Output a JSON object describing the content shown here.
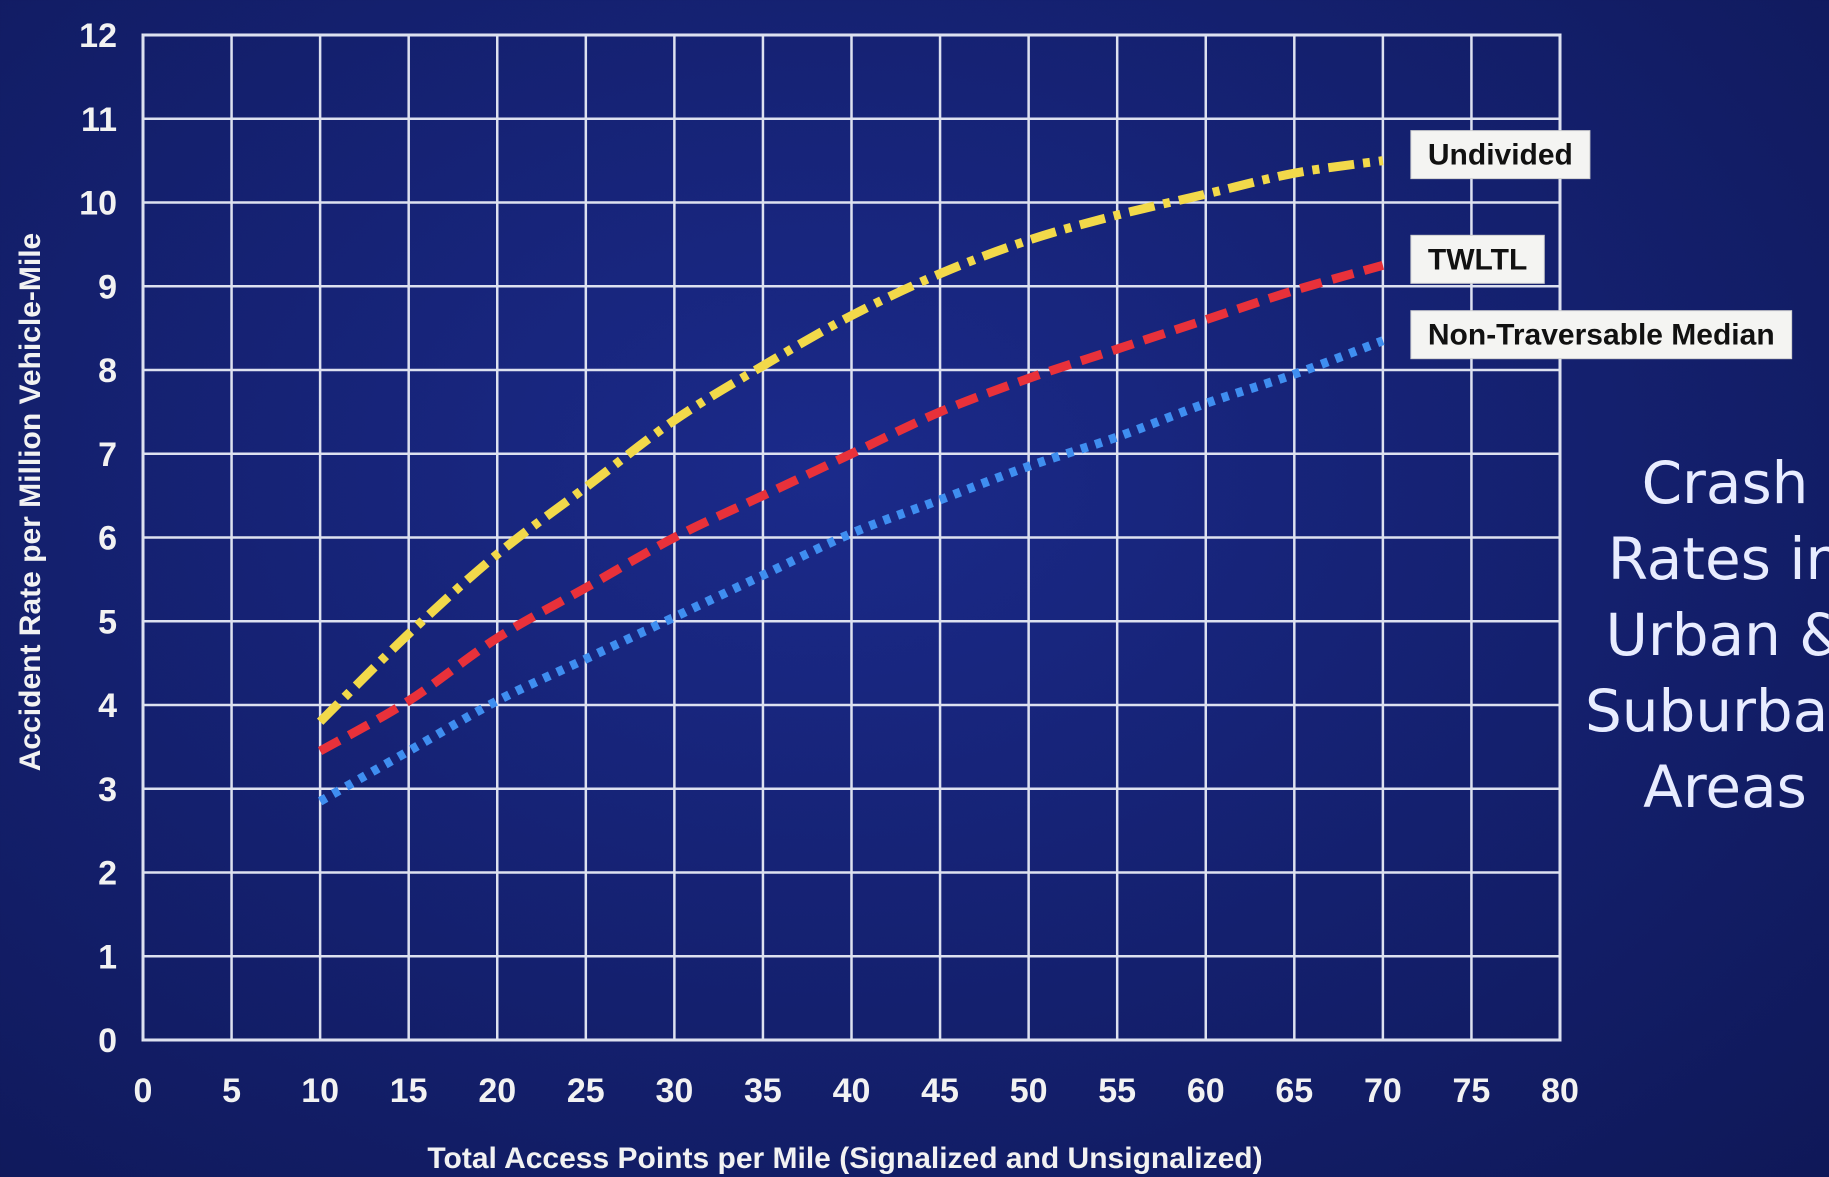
{
  "chart_data": {
    "type": "line",
    "title": "",
    "xlabel": "Total Access Points per Mile (Signalized and Unsignalized)",
    "ylabel": "Accident Rate per Million Vehicle-Mile",
    "xlim": [
      0,
      80
    ],
    "ylim": [
      0,
      12
    ],
    "x_ticks": [
      "0",
      "5",
      "10",
      "15",
      "20",
      "25",
      "30",
      "35",
      "40",
      "45",
      "50",
      "55",
      "60",
      "65",
      "70",
      "75",
      "80"
    ],
    "y_ticks": [
      "0",
      "1",
      "2",
      "3",
      "4",
      "5",
      "6",
      "7",
      "8",
      "9",
      "10",
      "11",
      "12"
    ],
    "grid": true,
    "series": [
      {
        "name": "Undivided",
        "color": "#f2d94a",
        "style": "dash-dot",
        "x": [
          10,
          15,
          20,
          25,
          30,
          35,
          40,
          45,
          50,
          55,
          60,
          65,
          70
        ],
        "y": [
          3.8,
          4.85,
          5.8,
          6.6,
          7.4,
          8.05,
          8.65,
          9.15,
          9.55,
          9.85,
          10.1,
          10.35,
          10.5
        ]
      },
      {
        "name": "TWLTL",
        "color": "#e8313a",
        "style": "dashed",
        "x": [
          10,
          15,
          20,
          25,
          30,
          35,
          40,
          45,
          50,
          55,
          60,
          65,
          70
        ],
        "y": [
          3.45,
          4.05,
          4.8,
          5.4,
          6.0,
          6.5,
          7.0,
          7.5,
          7.9,
          8.25,
          8.6,
          8.95,
          9.25
        ]
      },
      {
        "name": "Non-Traversable Median",
        "color": "#3f8ef0",
        "style": "dotted",
        "x": [
          10,
          15,
          20,
          25,
          30,
          35,
          40,
          45,
          50,
          55,
          60,
          65,
          70
        ],
        "y": [
          2.85,
          3.45,
          4.05,
          4.55,
          5.05,
          5.55,
          6.05,
          6.45,
          6.85,
          7.2,
          7.6,
          7.95,
          8.35
        ]
      }
    ]
  },
  "side_title": {
    "lines": [
      "Crash",
      "Rates in",
      "Urban &",
      "Suburban",
      "Areas"
    ]
  }
}
